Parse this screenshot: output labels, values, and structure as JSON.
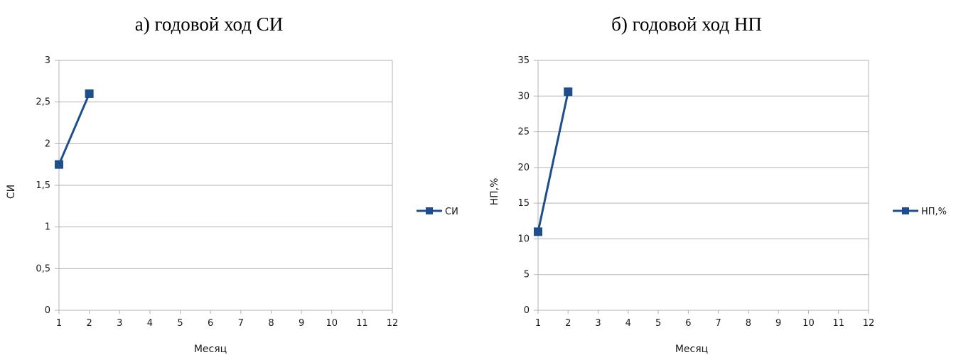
{
  "chart_data": [
    {
      "type": "line",
      "title": "а) годовой ход СИ",
      "xlabel": "Месяц",
      "ylabel": "СИ",
      "x_ticks": [
        "1",
        "2",
        "3",
        "4",
        "5",
        "6",
        "7",
        "8",
        "9",
        "10",
        "11",
        "12"
      ],
      "y_ticks": [
        "0",
        "0,5",
        "1",
        "1,5",
        "2",
        "2,5",
        "3"
      ],
      "xlim": [
        1,
        12
      ],
      "ylim": [
        0,
        3
      ],
      "grid": "horizontal",
      "legend_position": "right",
      "series": [
        {
          "name": "СИ",
          "color": "#1f4e8c",
          "marker": "square",
          "x": [
            1,
            2
          ],
          "y": [
            1.75,
            2.6
          ]
        }
      ]
    },
    {
      "type": "line",
      "title": "б) годовой ход НП",
      "xlabel": "Месяц",
      "ylabel": "НП,%",
      "x_ticks": [
        "1",
        "2",
        "3",
        "4",
        "5",
        "6",
        "7",
        "8",
        "9",
        "10",
        "11",
        "12"
      ],
      "y_ticks": [
        "0",
        "5",
        "10",
        "15",
        "20",
        "25",
        "30",
        "35"
      ],
      "xlim": [
        1,
        12
      ],
      "ylim": [
        0,
        35
      ],
      "grid": "horizontal",
      "legend_position": "right",
      "series": [
        {
          "name": "НП,%",
          "color": "#1f4e8c",
          "marker": "square",
          "x": [
            1,
            2
          ],
          "y": [
            11,
            30.6
          ]
        }
      ]
    }
  ]
}
